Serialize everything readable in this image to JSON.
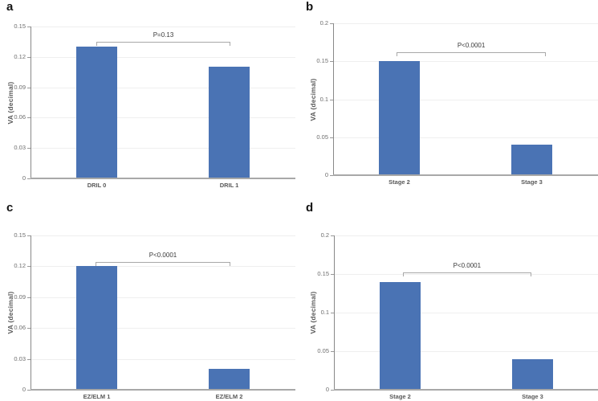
{
  "figure": {
    "background_color": "#ffffff",
    "bar_color": "#4a73b4",
    "gridline_color": "#efefef",
    "x_axis_color": "#a8a8a8",
    "y_axis_color": "#888888",
    "tick_color": "#999999",
    "bracket_color": "#a8a8a8",
    "tick_label_color": "#6e6e6e",
    "category_label_color": "#595959",
    "p_label_color": "#3a3a3a",
    "panel_letter_color": "#141414"
  },
  "chart_data": [
    {
      "panel": "a",
      "type": "bar",
      "categories": [
        "DRIL 0",
        "DRIL 1"
      ],
      "values": [
        0.13,
        0.11
      ],
      "title": "",
      "xlabel": "",
      "ylabel": "VA (decimal)",
      "ylim": [
        0,
        0.15
      ],
      "yticks": [
        "0",
        "0.03",
        "0.06",
        "0.09",
        "0.12",
        "0.15"
      ],
      "grid": true,
      "legend": false,
      "significance": {
        "label": "P=0.13",
        "between": [
          "DRIL 0",
          "DRIL 1"
        ],
        "bracket_y": 0.135
      }
    },
    {
      "panel": "b",
      "type": "bar",
      "categories": [
        "Stage 2",
        "Stage 3"
      ],
      "values": [
        0.15,
        0.04
      ],
      "title": "",
      "xlabel": "",
      "ylabel": "VA (decimal)",
      "ylim": [
        0,
        0.2
      ],
      "yticks": [
        "0",
        "0.05",
        "0.1",
        "0.15",
        "0.2"
      ],
      "grid": true,
      "legend": false,
      "significance": {
        "label": "P<0.0001",
        "between": [
          "Stage 2",
          "Stage 3"
        ],
        "bracket_y": 0.162
      }
    },
    {
      "panel": "c",
      "type": "bar",
      "categories": [
        "EZ/ELM 1",
        "EZ/ELM 2"
      ],
      "values": [
        0.12,
        0.02
      ],
      "title": "",
      "xlabel": "",
      "ylabel": "VA (decimal)",
      "ylim": [
        0,
        0.15
      ],
      "yticks": [
        "0",
        "0.03",
        "0.06",
        "0.09",
        "0.12",
        "0.15"
      ],
      "grid": true,
      "legend": false,
      "significance": {
        "label": "P<0.0001",
        "between": [
          "EZ/ELM 1",
          "EZ/ELM 2"
        ],
        "bracket_y": 0.124
      }
    },
    {
      "panel": "d",
      "type": "bar",
      "categories": [
        "Stage 2",
        "Stage 3"
      ],
      "values": [
        0.14,
        0.04
      ],
      "title": "",
      "xlabel": "",
      "ylabel": "VA (decimal)",
      "ylim": [
        0,
        0.2
      ],
      "yticks": [
        "0",
        "0.05",
        "0.1",
        "0.15",
        "0.2"
      ],
      "grid": true,
      "legend": false,
      "significance": {
        "label": "P<0.0001",
        "between": [
          "Stage 2",
          "Stage 3"
        ],
        "bracket_y": 0.152
      }
    }
  ]
}
